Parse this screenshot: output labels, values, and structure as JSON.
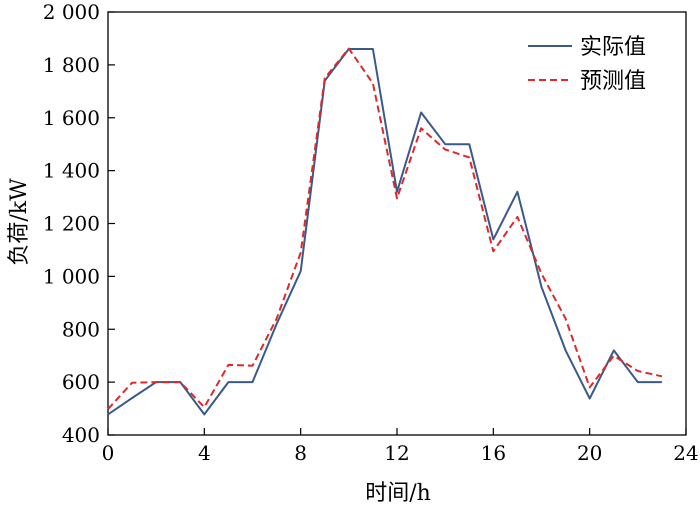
{
  "chart_data": {
    "type": "line",
    "xlabel": "时间/h",
    "ylabel": "负荷/kW",
    "xlim": [
      0,
      24
    ],
    "ylim": [
      400,
      2000
    ],
    "xticks": [
      0,
      4,
      8,
      12,
      16,
      20,
      24
    ],
    "xtick_labels": [
      "0",
      "4",
      "8",
      "12",
      "16",
      "20",
      "24"
    ],
    "yticks": [
      400,
      600,
      800,
      1000,
      1200,
      1400,
      1600,
      1800,
      2000
    ],
    "ytick_labels": [
      "400",
      "600",
      "800",
      "1 000",
      "1 200",
      "1 400",
      "1 600",
      "1 800",
      "2 000"
    ],
    "grid": false,
    "legend_position": "top-right",
    "x": [
      0,
      1,
      2,
      3,
      4,
      5,
      6,
      7,
      8,
      9,
      10,
      11,
      12,
      13,
      14,
      15,
      16,
      17,
      18,
      19,
      20,
      21,
      22,
      23
    ],
    "series": [
      {
        "name": "实际值",
        "color": "#3a5a8c",
        "style": "solid",
        "values": [
          478,
          540,
          600,
          600,
          478,
          600,
          600,
          820,
          1020,
          1740,
          1860,
          1860,
          1320,
          1620,
          1500,
          1500,
          1140,
          1320,
          960,
          720,
          538,
          720,
          600,
          600
        ]
      },
      {
        "name": "预测值",
        "color": "#e0282a",
        "style": "dashed",
        "values": [
          498,
          598,
          600,
          600,
          505,
          665,
          662,
          840,
          1090,
          1750,
          1862,
          1730,
          1295,
          1560,
          1480,
          1450,
          1095,
          1225,
          1010,
          840,
          580,
          700,
          642,
          622
        ]
      }
    ]
  }
}
